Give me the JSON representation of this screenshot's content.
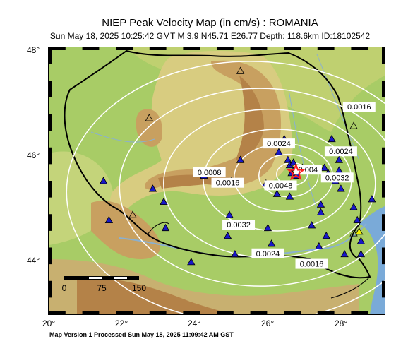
{
  "title": "NIEP Peak Velocity Map (in cm/s) : ROMANIA",
  "subtitle": "Sun May 18, 2025 10:25:42 GMT   M 3.9   N45.71 E26.77   Depth: 118.6km   ID:18102542",
  "footer": "Map Version 1 Processed Sun May 18, 2025 11:09:42 AM GST",
  "axes": {
    "lat_labels": [
      "48°",
      "46°",
      "44°"
    ],
    "lon_labels": [
      "20°",
      "22°",
      "24°",
      "26°",
      "28°"
    ],
    "lon_range": [
      20,
      29.2
    ],
    "lat_range": [
      43,
      48.1
    ]
  },
  "scale_bar": {
    "labels": [
      "0",
      "75",
      "150"
    ]
  },
  "contours": [
    {
      "label": "0.0016",
      "lon": 28.5,
      "lat": 46.95
    },
    {
      "label": "0.0024",
      "lon": 26.3,
      "lat": 46.25
    },
    {
      "label": "0.0024",
      "lon": 28.0,
      "lat": 46.1
    },
    {
      "label": "0.004",
      "lon": 27.1,
      "lat": 45.75
    },
    {
      "label": "0.0032",
      "lon": 27.9,
      "lat": 45.6
    },
    {
      "label": "0.0048",
      "lon": 26.35,
      "lat": 45.45
    },
    {
      "label": "0.0008",
      "lon": 24.4,
      "lat": 45.7
    },
    {
      "label": "0.0016",
      "lon": 24.9,
      "lat": 45.5
    },
    {
      "label": "0.0032",
      "lon": 25.2,
      "lat": 44.7
    },
    {
      "label": "0.0024",
      "lon": 26.0,
      "lat": 44.15
    },
    {
      "label": "0.0016",
      "lon": 27.2,
      "lat": 43.95
    }
  ],
  "epicenter": {
    "lon": 26.77,
    "lat": 45.71
  },
  "colors": {
    "lowland": "#a8cc66",
    "upland": "#d8cc80",
    "mountain": "#c8a060",
    "high_mountain": "#b48248",
    "sea": "#7aaad8",
    "station": "#1818c8",
    "station_yellow": "#f0f000",
    "epicenter": "#ff2020",
    "contour": "#ffffff"
  }
}
